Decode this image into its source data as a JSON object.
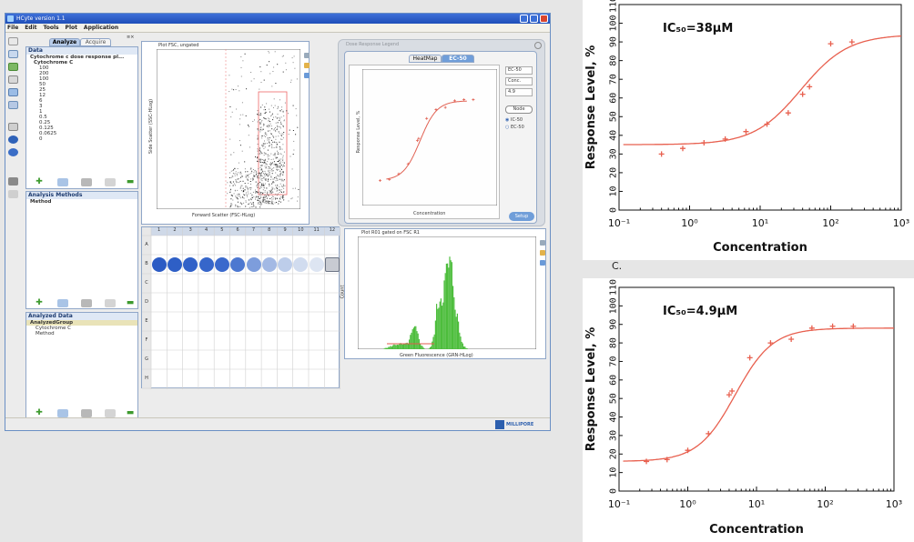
{
  "window": {
    "title": "HCyte version 1.1",
    "menu": [
      "File",
      "Edit",
      "Tools",
      "Plot",
      "Application"
    ]
  },
  "left_panel": {
    "tabs": [
      "Analyze",
      "Acquire"
    ],
    "data_title": "Data",
    "tree": [
      "Cytochrome c dose response pl...",
      "Cytochrome C",
      "100",
      "200",
      "100",
      "50",
      "25",
      "12",
      "6",
      "3",
      "1",
      "0.5",
      "0.25",
      "0.125",
      "0.0625",
      "0"
    ],
    "methods_title": "Analysis Methods",
    "methods_item": "Method",
    "analyzed_title": "Analyzed Data",
    "analyzed_items": [
      "AnalyzedGroup",
      "Cytochrome C",
      "Method"
    ]
  },
  "scatter_plot": {
    "title": "Plot FSC, ungated",
    "xlabel": "Forward Scatter (FSC-HLog)",
    "ylabel": "Side Scatter (SSC-HLog)"
  },
  "well_grid": {
    "columns": [
      "1",
      "2",
      "3",
      "4",
      "5",
      "6",
      "7",
      "8",
      "9",
      "10",
      "11",
      "12"
    ],
    "rows": [
      "A",
      "B",
      "C",
      "D",
      "E",
      "F",
      "G",
      "H"
    ]
  },
  "dose_panel": {
    "title": "Dose Response Legend",
    "tabs": [
      "HeatMap",
      "EC-50"
    ],
    "ylabel": "Response Level, %",
    "xlabel": "Concentration",
    "fields": [
      "EC-50",
      "Conc.",
      "4.9"
    ],
    "node_label": "Node",
    "radios": [
      "IC-50",
      "EC-50"
    ],
    "setup_label": "Setup"
  },
  "histogram": {
    "title": "Plot R01 gated on FSC R1",
    "xlabel": "Green Fluorescence (GRN-HLog)",
    "ylabel": "Count"
  },
  "status_logo": "MILLIPORE",
  "label_c": "C.",
  "chart_data": [
    {
      "type": "scatter",
      "annotation": "IC₅₀=38μM",
      "xlabel": "Concentration",
      "ylabel": "Response Level, %",
      "x_scale": "log",
      "xlim": [
        0.1,
        1000
      ],
      "ylim": [
        0,
        110
      ],
      "x_tick_labels": [
        "10⁻¹",
        "10⁰",
        "10¹",
        "10²",
        "10³"
      ],
      "y_ticks": [
        0,
        10,
        20,
        30,
        40,
        50,
        60,
        70,
        80,
        90,
        100,
        110
      ],
      "points": [
        {
          "x": 0.4,
          "y": 30
        },
        {
          "x": 0.8,
          "y": 33
        },
        {
          "x": 1.6,
          "y": 36
        },
        {
          "x": 3.2,
          "y": 38
        },
        {
          "x": 6.3,
          "y": 42
        },
        {
          "x": 12.5,
          "y": 46
        },
        {
          "x": 25,
          "y": 52
        },
        {
          "x": 40,
          "y": 62
        },
        {
          "x": 50,
          "y": 66
        },
        {
          "x": 100,
          "y": 89
        },
        {
          "x": 200,
          "y": 90
        }
      ],
      "fit": {
        "bottom": 35,
        "top": 94,
        "ic50": 38,
        "hill": 1.3
      }
    },
    {
      "type": "scatter",
      "annotation": "IC₅₀=4.9μM",
      "xlabel": "Concentration",
      "ylabel": "Response Level, %",
      "x_scale": "log",
      "xlim": [
        0.1,
        1000
      ],
      "ylim": [
        0,
        110
      ],
      "x_tick_labels": [
        "10⁻¹",
        "10⁰",
        "10¹",
        "10²",
        "10³"
      ],
      "y_ticks": [
        0,
        10,
        20,
        30,
        40,
        50,
        60,
        70,
        80,
        90,
        100,
        110
      ],
      "points": [
        {
          "x": 0.25,
          "y": 16
        },
        {
          "x": 0.5,
          "y": 17
        },
        {
          "x": 1,
          "y": 22
        },
        {
          "x": 2,
          "y": 31
        },
        {
          "x": 4,
          "y": 52
        },
        {
          "x": 4.4,
          "y": 54
        },
        {
          "x": 8,
          "y": 72
        },
        {
          "x": 16,
          "y": 80
        },
        {
          "x": 32,
          "y": 82
        },
        {
          "x": 64,
          "y": 88
        },
        {
          "x": 128,
          "y": 89
        },
        {
          "x": 256,
          "y": 89
        }
      ],
      "fit": {
        "bottom": 16,
        "top": 88,
        "ic50": 4.9,
        "hill": 1.6
      }
    }
  ]
}
